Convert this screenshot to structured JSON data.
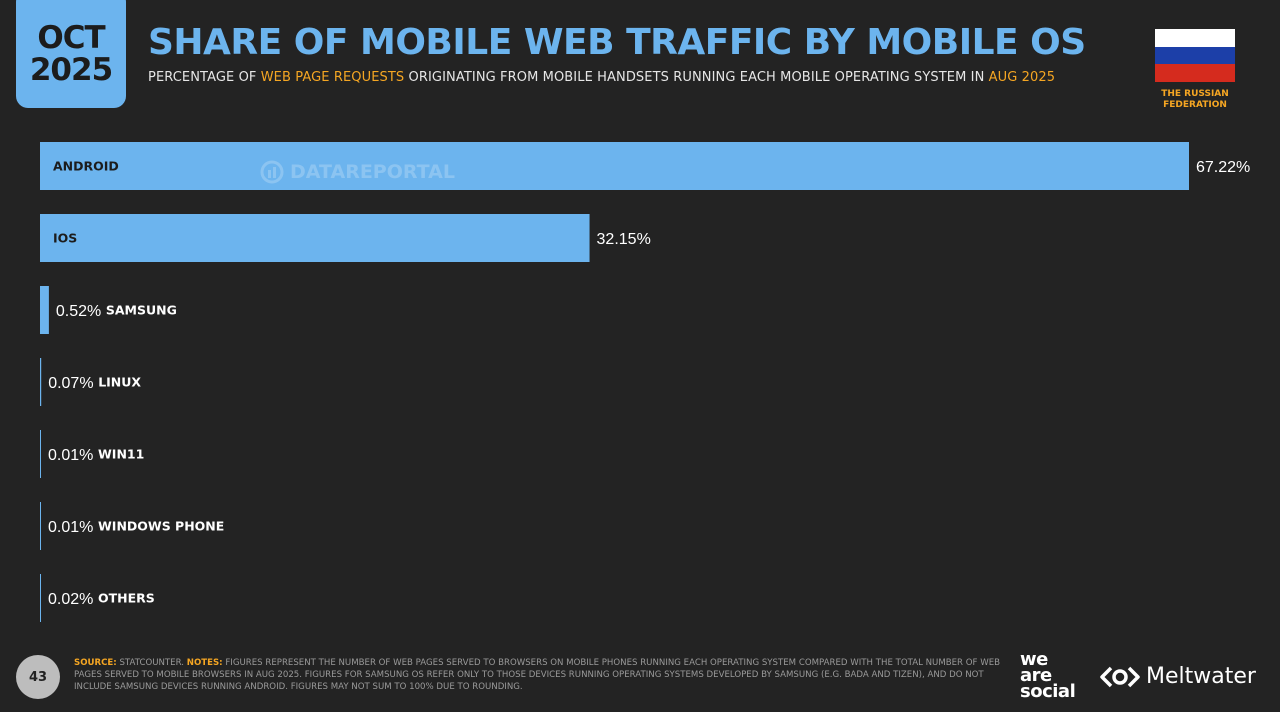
{
  "header": {
    "month": "OCT",
    "year": "2025",
    "title": "SHARE OF MOBILE WEB TRAFFIC BY MOBILE OS",
    "subtitle_pre": "PERCENTAGE OF ",
    "subtitle_hl1": "WEB PAGE REQUESTS",
    "subtitle_mid": " ORIGINATING FROM MOBILE HANDSETS RUNNING EACH MOBILE OPERATING SYSTEM IN ",
    "subtitle_hl2": "AUG 2025",
    "country_line1": "THE RUSSIAN",
    "country_line2": "FEDERATION"
  },
  "watermark": "DATAREPORTAL",
  "colors": {
    "accent": "#6cb4ee",
    "highlight": "#f5a623",
    "background": "#232323",
    "flag_white": "#ffffff",
    "flag_blue": "#1c3fa8",
    "flag_red": "#d52b1e"
  },
  "chart_data": {
    "type": "bar",
    "orientation": "horizontal",
    "title": "SHARE OF MOBILE WEB TRAFFIC BY MOBILE OS",
    "categories": [
      "ANDROID",
      "IOS",
      "SAMSUNG",
      "LINUX",
      "WIN11",
      "WINDOWS PHONE",
      "OTHERS"
    ],
    "values": [
      67.22,
      32.15,
      0.52,
      0.07,
      0.01,
      0.01,
      0.02
    ],
    "value_labels": [
      "67.22%",
      "32.15%",
      "0.52%",
      "0.07%",
      "0.01%",
      "0.01%",
      "0.02%"
    ],
    "xlim": [
      0,
      67.22
    ],
    "unit": "%"
  },
  "footer": {
    "page_number": "43",
    "source_key": "SOURCE:",
    "source_text": " STATCOUNTER. ",
    "notes_key": "NOTES:",
    "notes_text": " FIGURES REPRESENT THE NUMBER OF WEB PAGES SERVED TO BROWSERS ON MOBILE PHONES RUNNING EACH OPERATING SYSTEM COMPARED WITH THE TOTAL NUMBER OF WEB PAGES SERVED TO MOBILE BROWSERS IN AUG 2025. FIGURES FOR SAMSUNG OS REFER ONLY TO THOSE DEVICES RUNNING OPERATING SYSTEMS DEVELOPED BY SAMSUNG (E.G. BADA AND TIZEN), AND DO NOT INCLUDE SAMSUNG DEVICES RUNNING ANDROID. FIGURES MAY NOT SUM TO 100% DUE TO ROUNDING.",
    "brand1_line1": "we",
    "brand1_line2": "are",
    "brand1_line3": "social",
    "brand2": "Meltwater"
  }
}
